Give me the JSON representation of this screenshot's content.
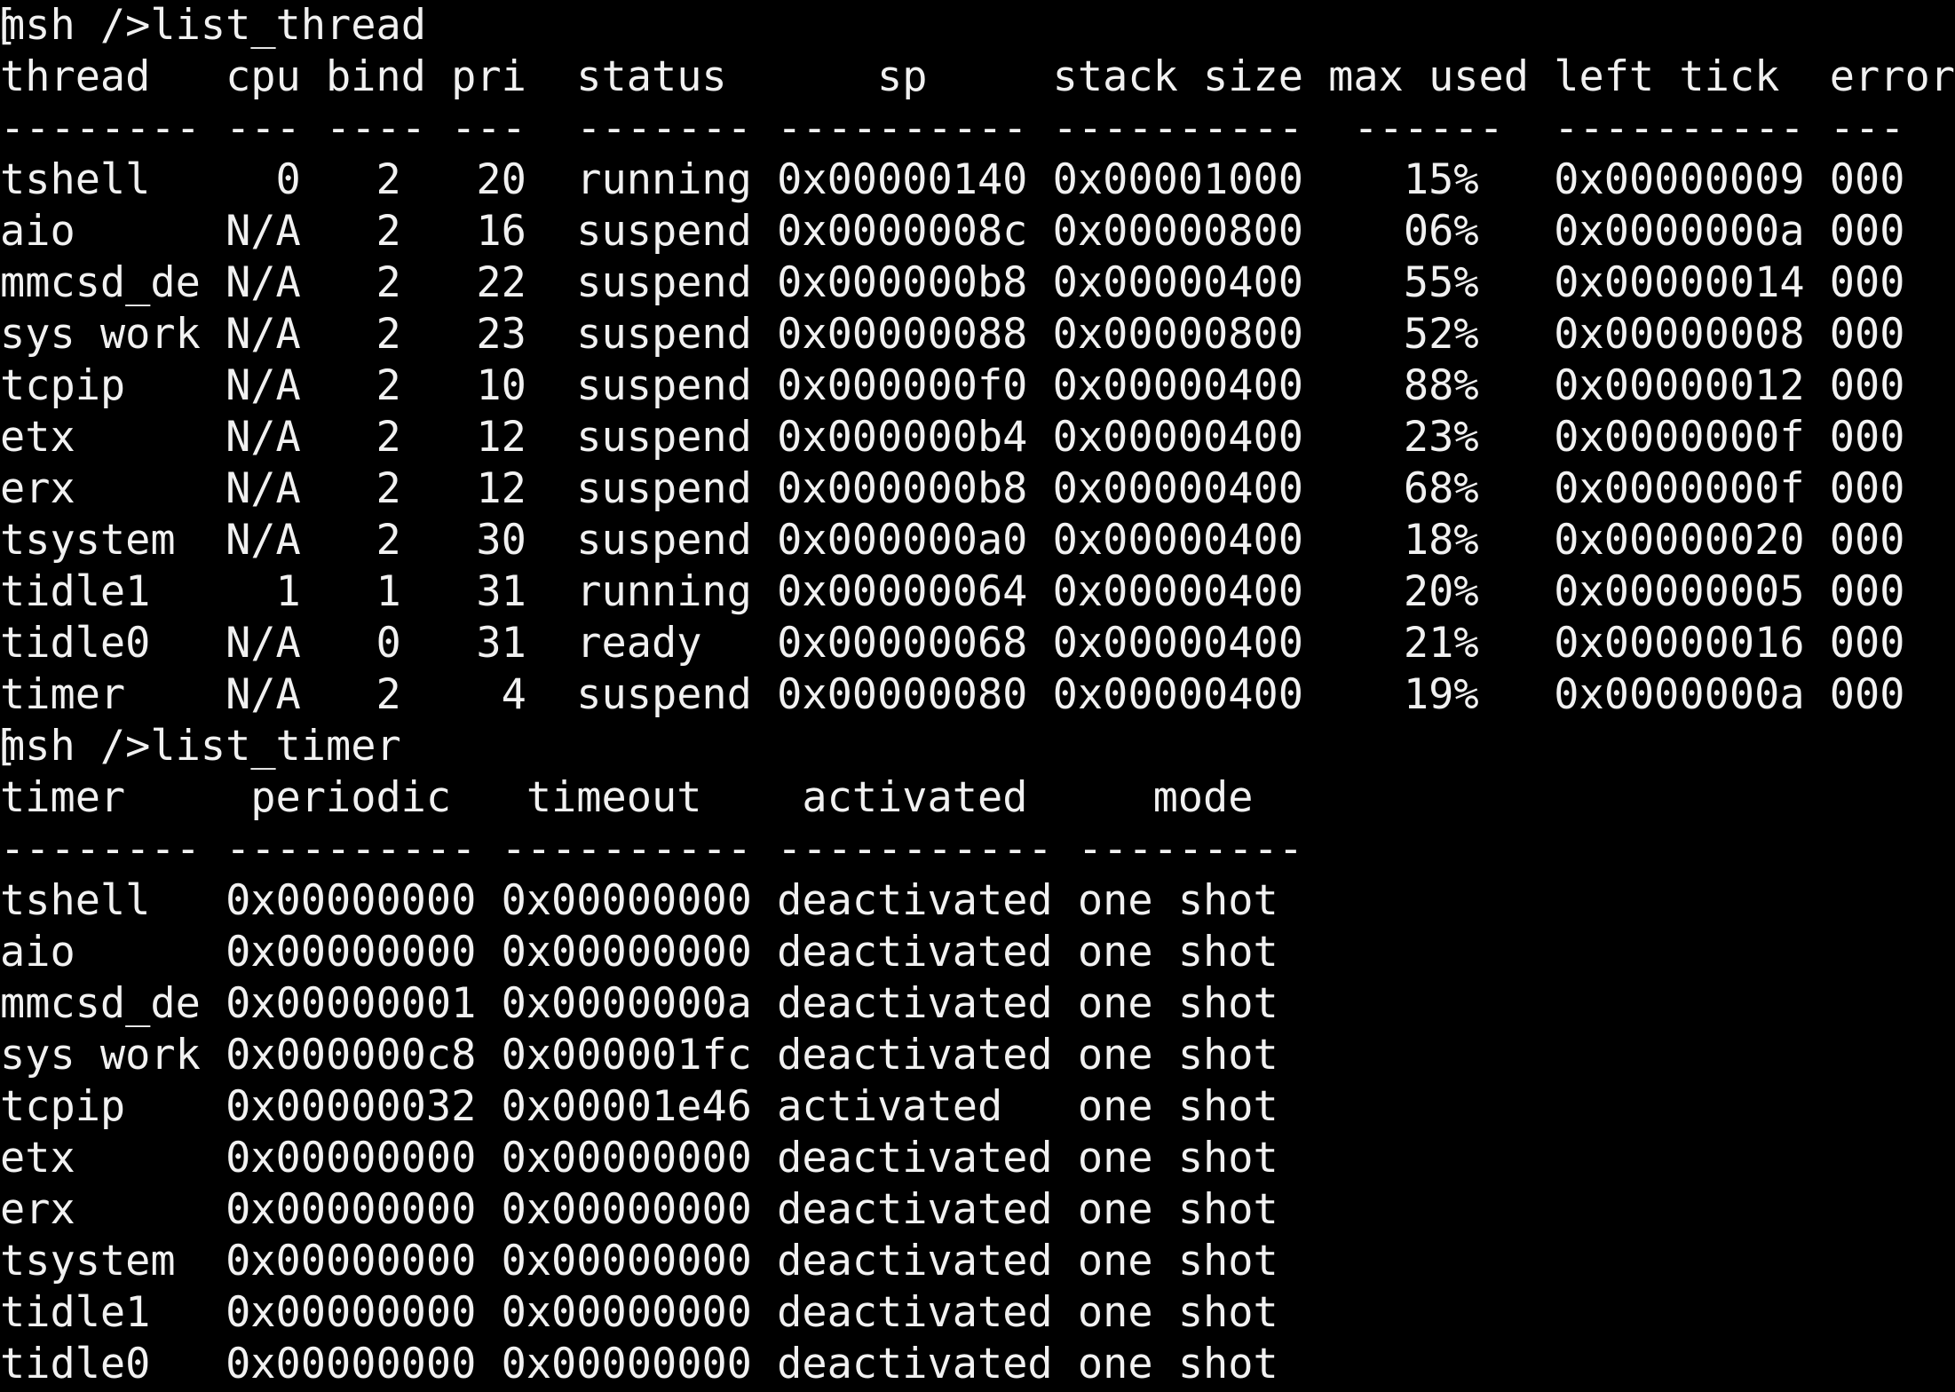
{
  "terminal": {
    "background": "#000000",
    "foreground": "#f1f1f1",
    "edge_glyph": "[",
    "prompt": "msh />",
    "commands": {
      "list_thread": "list_thread",
      "list_timer": "list_timer"
    },
    "thread_table": {
      "headers": {
        "thread": "thread",
        "cpu": "cpu",
        "bind": "bind",
        "pri": "pri",
        "status": "status",
        "sp": "sp",
        "stack_size": "stack size",
        "max_used": "max used",
        "left_tick": "left tick",
        "error": "error"
      },
      "separator": {
        "thread": "--------",
        "cpu": "---",
        "bind": "----",
        "pri": "---",
        "status": "-------",
        "sp": "----------",
        "stack_size": "----------",
        "max_used": "------",
        "left_tick": "----------",
        "error": "---"
      },
      "rows": [
        {
          "thread": "tshell",
          "cpu": "0",
          "bind": "2",
          "pri": "20",
          "status": "running",
          "sp": "0x00000140",
          "stack_size": "0x00001000",
          "max_used": "15%",
          "left_tick": "0x00000009",
          "error": "000"
        },
        {
          "thread": "aio",
          "cpu": "N/A",
          "bind": "2",
          "pri": "16",
          "status": "suspend",
          "sp": "0x0000008c",
          "stack_size": "0x00000800",
          "max_used": "06%",
          "left_tick": "0x0000000a",
          "error": "000"
        },
        {
          "thread": "mmcsd_de",
          "cpu": "N/A",
          "bind": "2",
          "pri": "22",
          "status": "suspend",
          "sp": "0x000000b8",
          "stack_size": "0x00000400",
          "max_used": "55%",
          "left_tick": "0x00000014",
          "error": "000"
        },
        {
          "thread": "sys work",
          "cpu": "N/A",
          "bind": "2",
          "pri": "23",
          "status": "suspend",
          "sp": "0x00000088",
          "stack_size": "0x00000800",
          "max_used": "52%",
          "left_tick": "0x00000008",
          "error": "000"
        },
        {
          "thread": "tcpip",
          "cpu": "N/A",
          "bind": "2",
          "pri": "10",
          "status": "suspend",
          "sp": "0x000000f0",
          "stack_size": "0x00000400",
          "max_used": "88%",
          "left_tick": "0x00000012",
          "error": "000"
        },
        {
          "thread": "etx",
          "cpu": "N/A",
          "bind": "2",
          "pri": "12",
          "status": "suspend",
          "sp": "0x000000b4",
          "stack_size": "0x00000400",
          "max_used": "23%",
          "left_tick": "0x0000000f",
          "error": "000"
        },
        {
          "thread": "erx",
          "cpu": "N/A",
          "bind": "2",
          "pri": "12",
          "status": "suspend",
          "sp": "0x000000b8",
          "stack_size": "0x00000400",
          "max_used": "68%",
          "left_tick": "0x0000000f",
          "error": "000"
        },
        {
          "thread": "tsystem",
          "cpu": "N/A",
          "bind": "2",
          "pri": "30",
          "status": "suspend",
          "sp": "0x000000a0",
          "stack_size": "0x00000400",
          "max_used": "18%",
          "left_tick": "0x00000020",
          "error": "000"
        },
        {
          "thread": "tidle1",
          "cpu": "1",
          "bind": "1",
          "pri": "31",
          "status": "running",
          "sp": "0x00000064",
          "stack_size": "0x00000400",
          "max_used": "20%",
          "left_tick": "0x00000005",
          "error": "000"
        },
        {
          "thread": "tidle0",
          "cpu": "N/A",
          "bind": "0",
          "pri": "31",
          "status": "ready",
          "sp": "0x00000068",
          "stack_size": "0x00000400",
          "max_used": "21%",
          "left_tick": "0x00000016",
          "error": "000"
        },
        {
          "thread": "timer",
          "cpu": "N/A",
          "bind": "2",
          "pri": "4",
          "status": "suspend",
          "sp": "0x00000080",
          "stack_size": "0x00000400",
          "max_used": "19%",
          "left_tick": "0x0000000a",
          "error": "000"
        }
      ]
    },
    "timer_table": {
      "headers": {
        "timer": "timer",
        "periodic": "periodic",
        "timeout": "timeout",
        "activated": "activated",
        "mode": "mode"
      },
      "separator": {
        "timer": "--------",
        "periodic": "----------",
        "timeout": "----------",
        "activated": "-----------",
        "mode": "---------"
      },
      "rows": [
        {
          "timer": "tshell",
          "periodic": "0x00000000",
          "timeout": "0x00000000",
          "activated": "deactivated",
          "mode": "one shot"
        },
        {
          "timer": "aio",
          "periodic": "0x00000000",
          "timeout": "0x00000000",
          "activated": "deactivated",
          "mode": "one shot"
        },
        {
          "timer": "mmcsd_de",
          "periodic": "0x00000001",
          "timeout": "0x0000000a",
          "activated": "deactivated",
          "mode": "one shot"
        },
        {
          "timer": "sys work",
          "periodic": "0x000000c8",
          "timeout": "0x000001fc",
          "activated": "deactivated",
          "mode": "one shot"
        },
        {
          "timer": "tcpip",
          "periodic": "0x00000032",
          "timeout": "0x00001e46",
          "activated": "activated",
          "mode": "one shot"
        },
        {
          "timer": "etx",
          "periodic": "0x00000000",
          "timeout": "0x00000000",
          "activated": "deactivated",
          "mode": "one shot"
        },
        {
          "timer": "erx",
          "periodic": "0x00000000",
          "timeout": "0x00000000",
          "activated": "deactivated",
          "mode": "one shot"
        },
        {
          "timer": "tsystem",
          "periodic": "0x00000000",
          "timeout": "0x00000000",
          "activated": "deactivated",
          "mode": "one shot"
        },
        {
          "timer": "tidle1",
          "periodic": "0x00000000",
          "timeout": "0x00000000",
          "activated": "deactivated",
          "mode": "one shot"
        },
        {
          "timer": "tidle0",
          "periodic": "0x00000000",
          "timeout": "0x00000000",
          "activated": "deactivated",
          "mode": "one shot"
        }
      ]
    }
  }
}
